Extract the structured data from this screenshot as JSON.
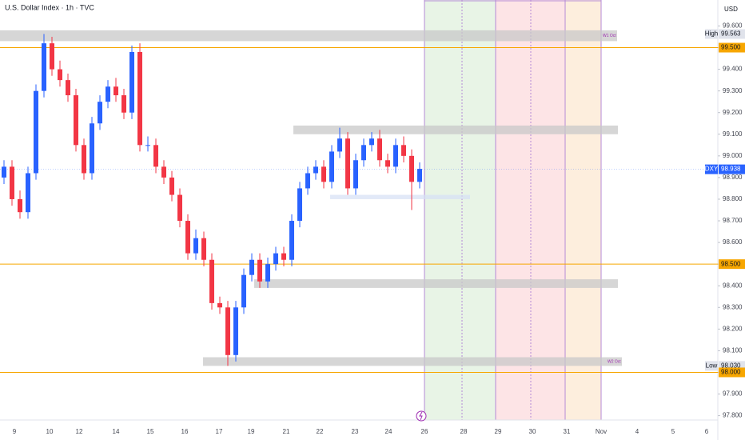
{
  "chart_data": {
    "type": "candlestick",
    "title": "U.S. Dollar Index · 1h · TVC",
    "currency": "USD",
    "up_color": "#2962ff",
    "down_color": "#f23645",
    "ylim": [
      97.78,
      99.72
    ],
    "yticks": [
      {
        "value": 99.6,
        "label": "99.600"
      },
      {
        "value": 99.5,
        "label": "99.500"
      },
      {
        "value": 99.4,
        "label": "99.400"
      },
      {
        "value": 99.3,
        "label": "99.300"
      },
      {
        "value": 99.2,
        "label": "99.200"
      },
      {
        "value": 99.1,
        "label": "99.100"
      },
      {
        "value": 99.0,
        "label": "99.000"
      },
      {
        "value": 98.9,
        "label": "98.900"
      },
      {
        "value": 98.8,
        "label": "98.800"
      },
      {
        "value": 98.7,
        "label": "98.700"
      },
      {
        "value": 98.6,
        "label": "98.600"
      },
      {
        "value": 98.5,
        "label": "98.500"
      },
      {
        "value": 98.4,
        "label": "98.400"
      },
      {
        "value": 98.3,
        "label": "98.300"
      },
      {
        "value": 98.2,
        "label": "98.200"
      },
      {
        "value": 98.1,
        "label": "98.100"
      },
      {
        "value": 98.0,
        "label": "98.000"
      },
      {
        "value": 97.9,
        "label": "97.900"
      },
      {
        "value": 97.8,
        "label": "97.800"
      }
    ],
    "categories": [
      "9",
      "10",
      "12",
      "14",
      "15",
      "16",
      "17",
      "19",
      "21",
      "22",
      "23",
      "24",
      "26",
      "28",
      "29",
      "30",
      "31",
      "Nov",
      "4",
      "5",
      "6"
    ],
    "open": [
      98.9,
      98.95,
      98.8,
      98.74,
      98.92,
      99.3,
      99.52,
      99.4,
      99.35,
      99.28,
      99.05,
      98.92,
      99.15,
      99.25,
      99.32,
      99.28,
      99.2,
      99.48,
      99.05,
      99.05,
      98.95,
      98.9,
      98.82,
      98.7,
      98.55,
      98.62,
      98.52,
      98.32,
      98.3,
      98.08,
      98.3,
      98.45,
      98.52,
      98.42,
      98.5,
      98.55,
      98.52,
      98.7,
      98.85,
      98.92,
      98.95,
      98.88,
      99.02,
      99.08,
      98.85,
      98.98,
      99.05,
      99.08,
      98.98,
      98.95,
      99.05,
      99.0,
      98.88
    ],
    "high": [
      98.98,
      98.98,
      98.84,
      98.95,
      99.33,
      99.563,
      99.55,
      99.44,
      99.38,
      99.31,
      99.08,
      99.18,
      99.28,
      99.35,
      99.36,
      99.31,
      99.51,
      99.52,
      99.09,
      99.08,
      98.98,
      98.93,
      98.85,
      98.73,
      98.66,
      98.65,
      98.55,
      98.35,
      98.33,
      98.33,
      98.48,
      98.55,
      98.55,
      98.53,
      98.58,
      98.58,
      98.73,
      98.88,
      98.95,
      98.98,
      98.98,
      99.05,
      99.13,
      99.11,
      99.01,
      99.08,
      99.11,
      99.12,
      99.01,
      99.08,
      99.09,
      99.03,
      98.97
    ],
    "low": [
      98.87,
      98.77,
      98.71,
      98.71,
      98.89,
      99.27,
      99.37,
      99.32,
      99.25,
      99.02,
      98.89,
      98.89,
      99.12,
      99.22,
      99.25,
      99.17,
      99.17,
      99.02,
      99.02,
      98.92,
      98.87,
      98.79,
      98.67,
      98.52,
      98.52,
      98.49,
      98.29,
      98.27,
      98.03,
      98.05,
      98.27,
      98.42,
      98.39,
      98.39,
      98.47,
      98.49,
      98.49,
      98.67,
      98.82,
      98.89,
      98.85,
      98.85,
      98.99,
      98.82,
      98.82,
      98.95,
      99.02,
      98.95,
      98.92,
      98.92,
      98.97,
      98.75,
      98.85
    ],
    "close": [
      98.95,
      98.8,
      98.74,
      98.92,
      99.3,
      99.52,
      99.4,
      99.35,
      99.28,
      99.05,
      98.92,
      99.15,
      99.25,
      99.32,
      99.28,
      99.2,
      99.48,
      99.05,
      99.05,
      98.95,
      98.9,
      98.82,
      98.7,
      98.55,
      98.62,
      98.52,
      98.32,
      98.3,
      98.08,
      98.3,
      98.45,
      98.52,
      98.42,
      98.5,
      98.55,
      98.52,
      98.7,
      98.85,
      98.92,
      98.95,
      98.88,
      99.02,
      99.08,
      98.85,
      98.98,
      99.05,
      99.08,
      98.98,
      98.95,
      99.05,
      99.0,
      98.88,
      98.94
    ],
    "zones": [
      {
        "low": 99.53,
        "high": 99.58,
        "label": "W1 Oct"
      },
      {
        "low": 99.1,
        "high": 99.14
      },
      {
        "low": 98.8,
        "high": 98.82
      },
      {
        "low": 98.39,
        "high": 98.43
      },
      {
        "low": 98.03,
        "high": 98.07,
        "label": "W2 Oct"
      }
    ],
    "price_markers": [
      {
        "name": "High",
        "value": 99.563,
        "label": "99.563",
        "color": "#e0e3eb"
      },
      {
        "value": 99.5,
        "label": "99.500",
        "color": "#f7a600",
        "line": true
      },
      {
        "name": "DXY",
        "value": 98.938,
        "label": "98.938",
        "color": "#2962ff"
      },
      {
        "value": 98.5,
        "label": "98.500",
        "color": "#f7a600",
        "line": true
      },
      {
        "name": "Low",
        "value": 98.03,
        "label": "98.030",
        "color": "#e0e3eb"
      },
      {
        "value": 98.0,
        "label": "98.000",
        "color": "#f7a600",
        "line": true
      }
    ]
  }
}
